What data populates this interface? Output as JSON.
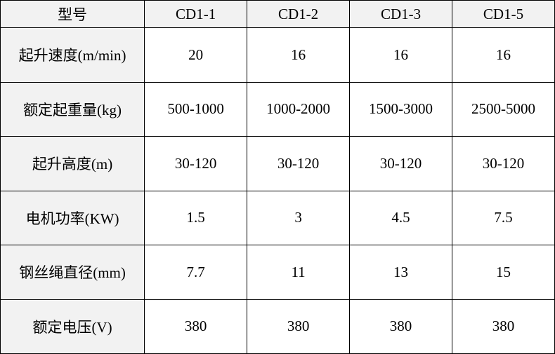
{
  "table": {
    "type": "table",
    "header_bg": "#f2f2f2",
    "data_bg": "#ffffff",
    "border_color": "#000000",
    "font_family": "SimSun",
    "font_size": 21,
    "text_color": "#000000",
    "columns": [
      "型号",
      "CD1-1",
      "CD1-2",
      "CD1-3",
      "CD1-5"
    ],
    "rows": [
      {
        "label": "起升速度(m/min)",
        "values": [
          "20",
          "16",
          "16",
          "16"
        ]
      },
      {
        "label": "额定起重量(kg)",
        "values": [
          "500-1000",
          "1000-2000",
          "1500-3000",
          "2500-5000"
        ]
      },
      {
        "label": "起升高度(m)",
        "values": [
          "30-120",
          "30-120",
          "30-120",
          "30-120"
        ]
      },
      {
        "label": "电机功率(KW)",
        "values": [
          "1.5",
          "3",
          "4.5",
          "7.5"
        ]
      },
      {
        "label": "钢丝绳直径(mm)",
        "values": [
          "7.7",
          "11",
          "13",
          "15"
        ]
      },
      {
        "label": "额定电压(V)",
        "values": [
          "380",
          "380",
          "380",
          "380"
        ]
      }
    ]
  }
}
